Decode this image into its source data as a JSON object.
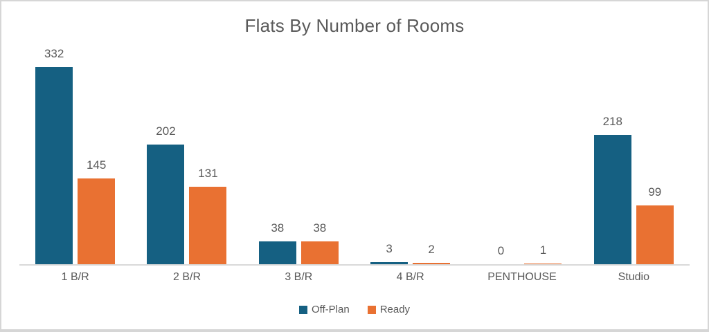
{
  "chart_data": {
    "type": "bar",
    "title": "Flats By Number of Rooms",
    "categories": [
      "1 B/R",
      "2 B/R",
      "3 B/R",
      "4 B/R",
      "PENTHOUSE",
      "Studio"
    ],
    "series": [
      {
        "name": "Off-Plan",
        "color": "#156082",
        "values": [
          332,
          202,
          38,
          3,
          0,
          218
        ]
      },
      {
        "name": "Ready",
        "color": "#E97132",
        "values": [
          145,
          131,
          38,
          2,
          1,
          99
        ]
      }
    ],
    "data_labels_shown": true,
    "legend_position": "bottom",
    "grid": false,
    "xlabel": "",
    "ylabel": ""
  },
  "colors": {
    "background": "#FFFFFF",
    "frame_border": "#D6D6D6",
    "axis_line": "#D9D9D9",
    "text": "#595959"
  }
}
